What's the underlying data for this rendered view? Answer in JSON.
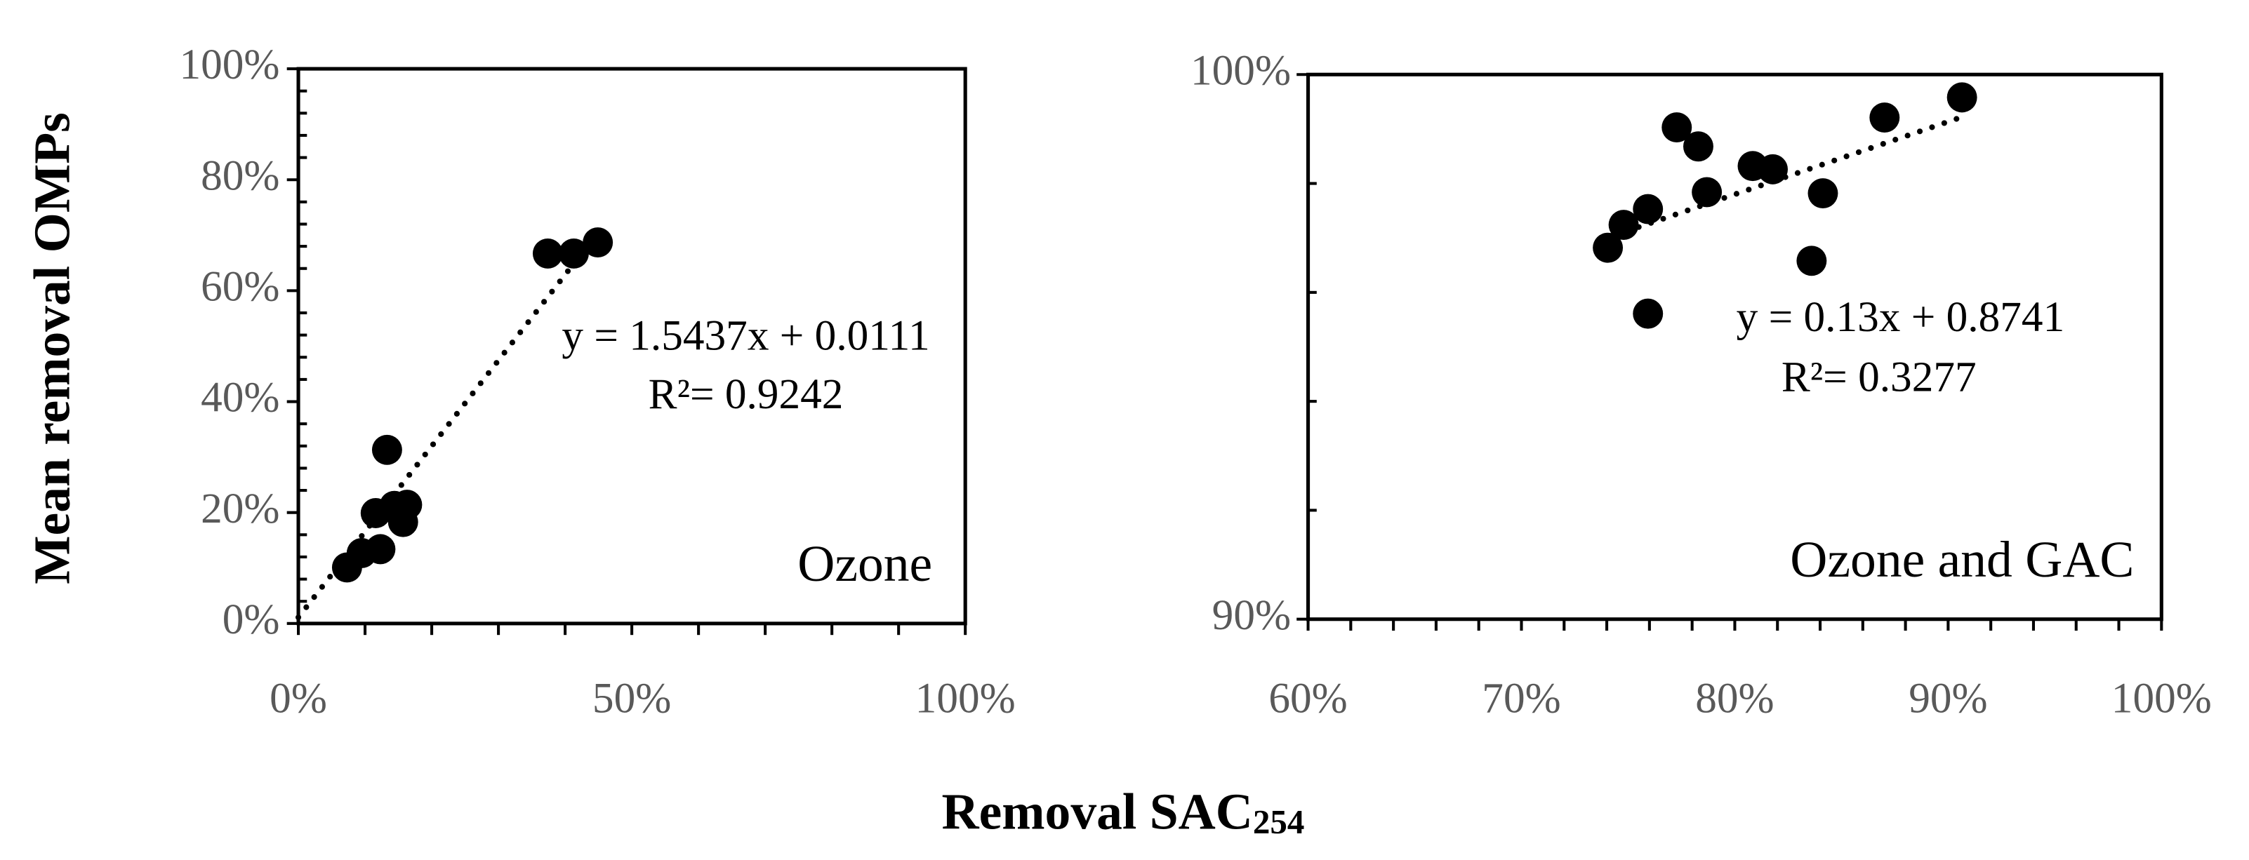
{
  "xlabel": {
    "text": "Removal SAC",
    "subscript": "254"
  },
  "ylabel": "Mean removal OMPs",
  "chart_data": [
    {
      "type": "scatter",
      "panel_label": "Ozone",
      "equation": "y = 1.5437x + 0.0111",
      "r_squared": "R²= 0.9242",
      "color": "#000000",
      "x": [
        7.3,
        9.5,
        12.3,
        11.6,
        13.3,
        14.4,
        16.3,
        15.7,
        37.4,
        41.3,
        44.9
      ],
      "values": [
        10.1,
        12.7,
        13.4,
        19.9,
        31.3,
        21.2,
        21.4,
        18.3,
        66.7,
        66.7,
        68.7
      ],
      "trendline": {
        "x": [
          0,
          45
        ],
        "values": [
          1.1,
          70.6
        ]
      },
      "xlim": [
        0,
        100
      ],
      "xticks": [
        {
          "value": 0,
          "label": "0%"
        },
        {
          "value": 50,
          "label": "50%"
        },
        {
          "value": 100,
          "label": "100%"
        }
      ],
      "xminorticks": [
        10,
        20,
        30,
        40,
        60,
        70,
        80,
        90
      ],
      "ylim": [
        0,
        100
      ],
      "yticks": [
        {
          "value": 0,
          "label": "0%"
        },
        {
          "value": 20,
          "label": "20%"
        },
        {
          "value": 40,
          "label": "40%"
        },
        {
          "value": 60,
          "label": "60%"
        },
        {
          "value": 80,
          "label": "80%"
        },
        {
          "value": 100,
          "label": "100%"
        }
      ],
      "yminorticks": [
        4,
        8,
        12,
        16,
        24,
        28,
        32,
        36,
        44,
        48,
        52,
        56,
        64,
        68,
        72,
        76,
        84,
        88,
        92,
        96
      ]
    },
    {
      "type": "scatter",
      "panel_label": "Ozone and GAC",
      "equation": "y = 0.13x + 0.8741",
      "r_squared": "R²= 0.3277",
      "color": "#000000",
      "x": [
        74.05,
        74.79,
        75.93,
        75.93,
        77.28,
        78.29,
        78.69,
        80.84,
        81.78,
        83.6,
        84.13,
        87.02,
        90.65
      ],
      "values": [
        96.82,
        97.24,
        97.53,
        95.61,
        99.03,
        98.68,
        97.84,
        98.32,
        98.26,
        96.58,
        97.82,
        99.21,
        99.58
      ],
      "trendline": {
        "x": [
          75.5,
          90.5
        ],
        "values": [
          97.2,
          99.2
        ]
      },
      "xlim": [
        60,
        100
      ],
      "xticks": [
        {
          "value": 60,
          "label": "60%"
        },
        {
          "value": 70,
          "label": "70%"
        },
        {
          "value": 80,
          "label": "80%"
        },
        {
          "value": 90,
          "label": "90%"
        },
        {
          "value": 100,
          "label": "100%"
        }
      ],
      "xminorticks": [
        62,
        64,
        66,
        68,
        72,
        74,
        76,
        78,
        82,
        84,
        86,
        88,
        92,
        94,
        96,
        98
      ],
      "ylim": [
        90,
        100
      ],
      "yticks": [
        {
          "value": 90,
          "label": "90%"
        },
        {
          "value": 100,
          "label": "100%"
        }
      ],
      "yminorticks": [
        92,
        94,
        96,
        98
      ]
    }
  ]
}
